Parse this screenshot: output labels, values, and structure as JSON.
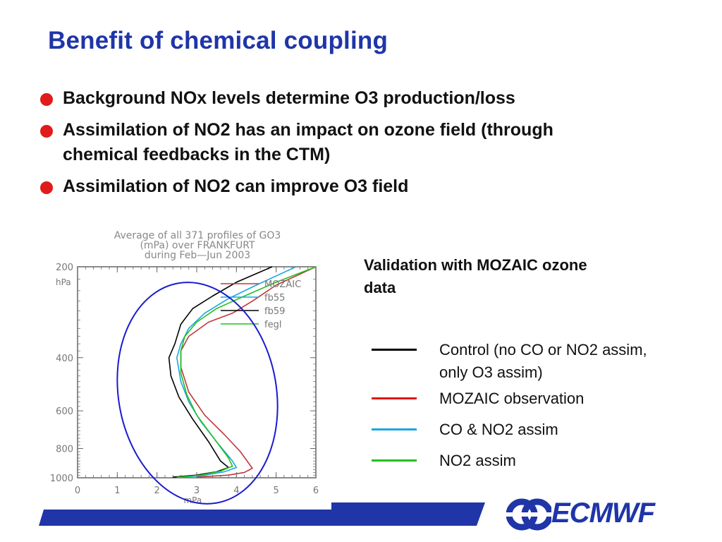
{
  "slide": {
    "title": "Benefit of chemical coupling",
    "bullets": [
      "Background NOx levels determine O3 production/loss",
      "Assimilation of NO2 has an impact on ozone field (through chemical feedbacks in the CTM)",
      "Assimilation of NO2 can improve O3 field"
    ],
    "side_heading": "Validation with MOZAIC ozone data",
    "legend": [
      {
        "label": "Control (no CO or NO2 assim, only O3 assim)",
        "color": "#000000"
      },
      {
        "label": "MOZAIC observation",
        "color": "#e01818"
      },
      {
        "label": "CO & NO2 assim",
        "color": "#1aa6e0"
      },
      {
        "label": "NO2 assim",
        "color": "#22c01e"
      }
    ],
    "logo_text": "ECMWF",
    "colors": {
      "title": "#1f35a8",
      "bullet": "#e11a1a",
      "footer": "#1f35a8"
    }
  },
  "chart_data": {
    "type": "line",
    "title": "Average of all 371 profiles of GO3 (mPa) over FRANKFURT during Feb—Jun 2003",
    "xlabel": "mPa",
    "ylabel": "hPa",
    "xlim": [
      0,
      6
    ],
    "ylim": [
      1000,
      200
    ],
    "yscale": "log",
    "xticks": [
      "0",
      "1",
      "2",
      "3",
      "4",
      "5",
      "6"
    ],
    "yticks": [
      "200",
      "400",
      "600",
      "800",
      "1000"
    ],
    "legend_position": "top-right",
    "series": [
      {
        "name": "MOZAIC",
        "color": "#c0393b",
        "points": [
          [
            6.0,
            200
          ],
          [
            5.0,
            230
          ],
          [
            4.4,
            260
          ],
          [
            3.9,
            285
          ],
          [
            3.3,
            305
          ],
          [
            2.8,
            340
          ],
          [
            2.6,
            380
          ],
          [
            2.6,
            430
          ],
          [
            2.8,
            520
          ],
          [
            3.2,
            620
          ],
          [
            3.7,
            720
          ],
          [
            4.1,
            820
          ],
          [
            4.4,
            930
          ],
          [
            4.2,
            960
          ],
          [
            3.8,
            980
          ],
          [
            3.0,
            995
          ]
        ]
      },
      {
        "name": "fb55",
        "color": "#1aa6e0",
        "points": [
          [
            5.5,
            200
          ],
          [
            4.5,
            230
          ],
          [
            3.8,
            255
          ],
          [
            3.2,
            285
          ],
          [
            2.8,
            320
          ],
          [
            2.6,
            360
          ],
          [
            2.5,
            400
          ],
          [
            2.6,
            480
          ],
          [
            2.8,
            560
          ],
          [
            3.1,
            650
          ],
          [
            3.5,
            760
          ],
          [
            3.9,
            880
          ],
          [
            4.0,
            925
          ],
          [
            3.7,
            955
          ],
          [
            3.1,
            985
          ],
          [
            2.5,
            998
          ]
        ]
      },
      {
        "name": "fb59",
        "color": "#000000",
        "points": [
          [
            4.9,
            200
          ],
          [
            4.0,
            225
          ],
          [
            3.4,
            250
          ],
          [
            2.9,
            275
          ],
          [
            2.6,
            310
          ],
          [
            2.45,
            360
          ],
          [
            2.3,
            400
          ],
          [
            2.35,
            460
          ],
          [
            2.55,
            540
          ],
          [
            2.9,
            640
          ],
          [
            3.3,
            760
          ],
          [
            3.6,
            880
          ],
          [
            3.8,
            925
          ],
          [
            3.5,
            955
          ],
          [
            3.0,
            980
          ],
          [
            2.4,
            995
          ]
        ]
      },
      {
        "name": "fegl",
        "color": "#22c01e",
        "points": [
          [
            6.0,
            200
          ],
          [
            5.0,
            225
          ],
          [
            4.2,
            250
          ],
          [
            3.5,
            275
          ],
          [
            3.0,
            305
          ],
          [
            2.7,
            340
          ],
          [
            2.6,
            380
          ],
          [
            2.6,
            450
          ],
          [
            2.75,
            530
          ],
          [
            3.0,
            620
          ],
          [
            3.4,
            730
          ],
          [
            3.8,
            860
          ],
          [
            3.9,
            915
          ],
          [
            3.6,
            950
          ],
          [
            3.1,
            980
          ],
          [
            2.5,
            996
          ]
        ]
      }
    ],
    "annotation": {
      "shape": "ellipse",
      "color": "#1a1ad0"
    }
  }
}
